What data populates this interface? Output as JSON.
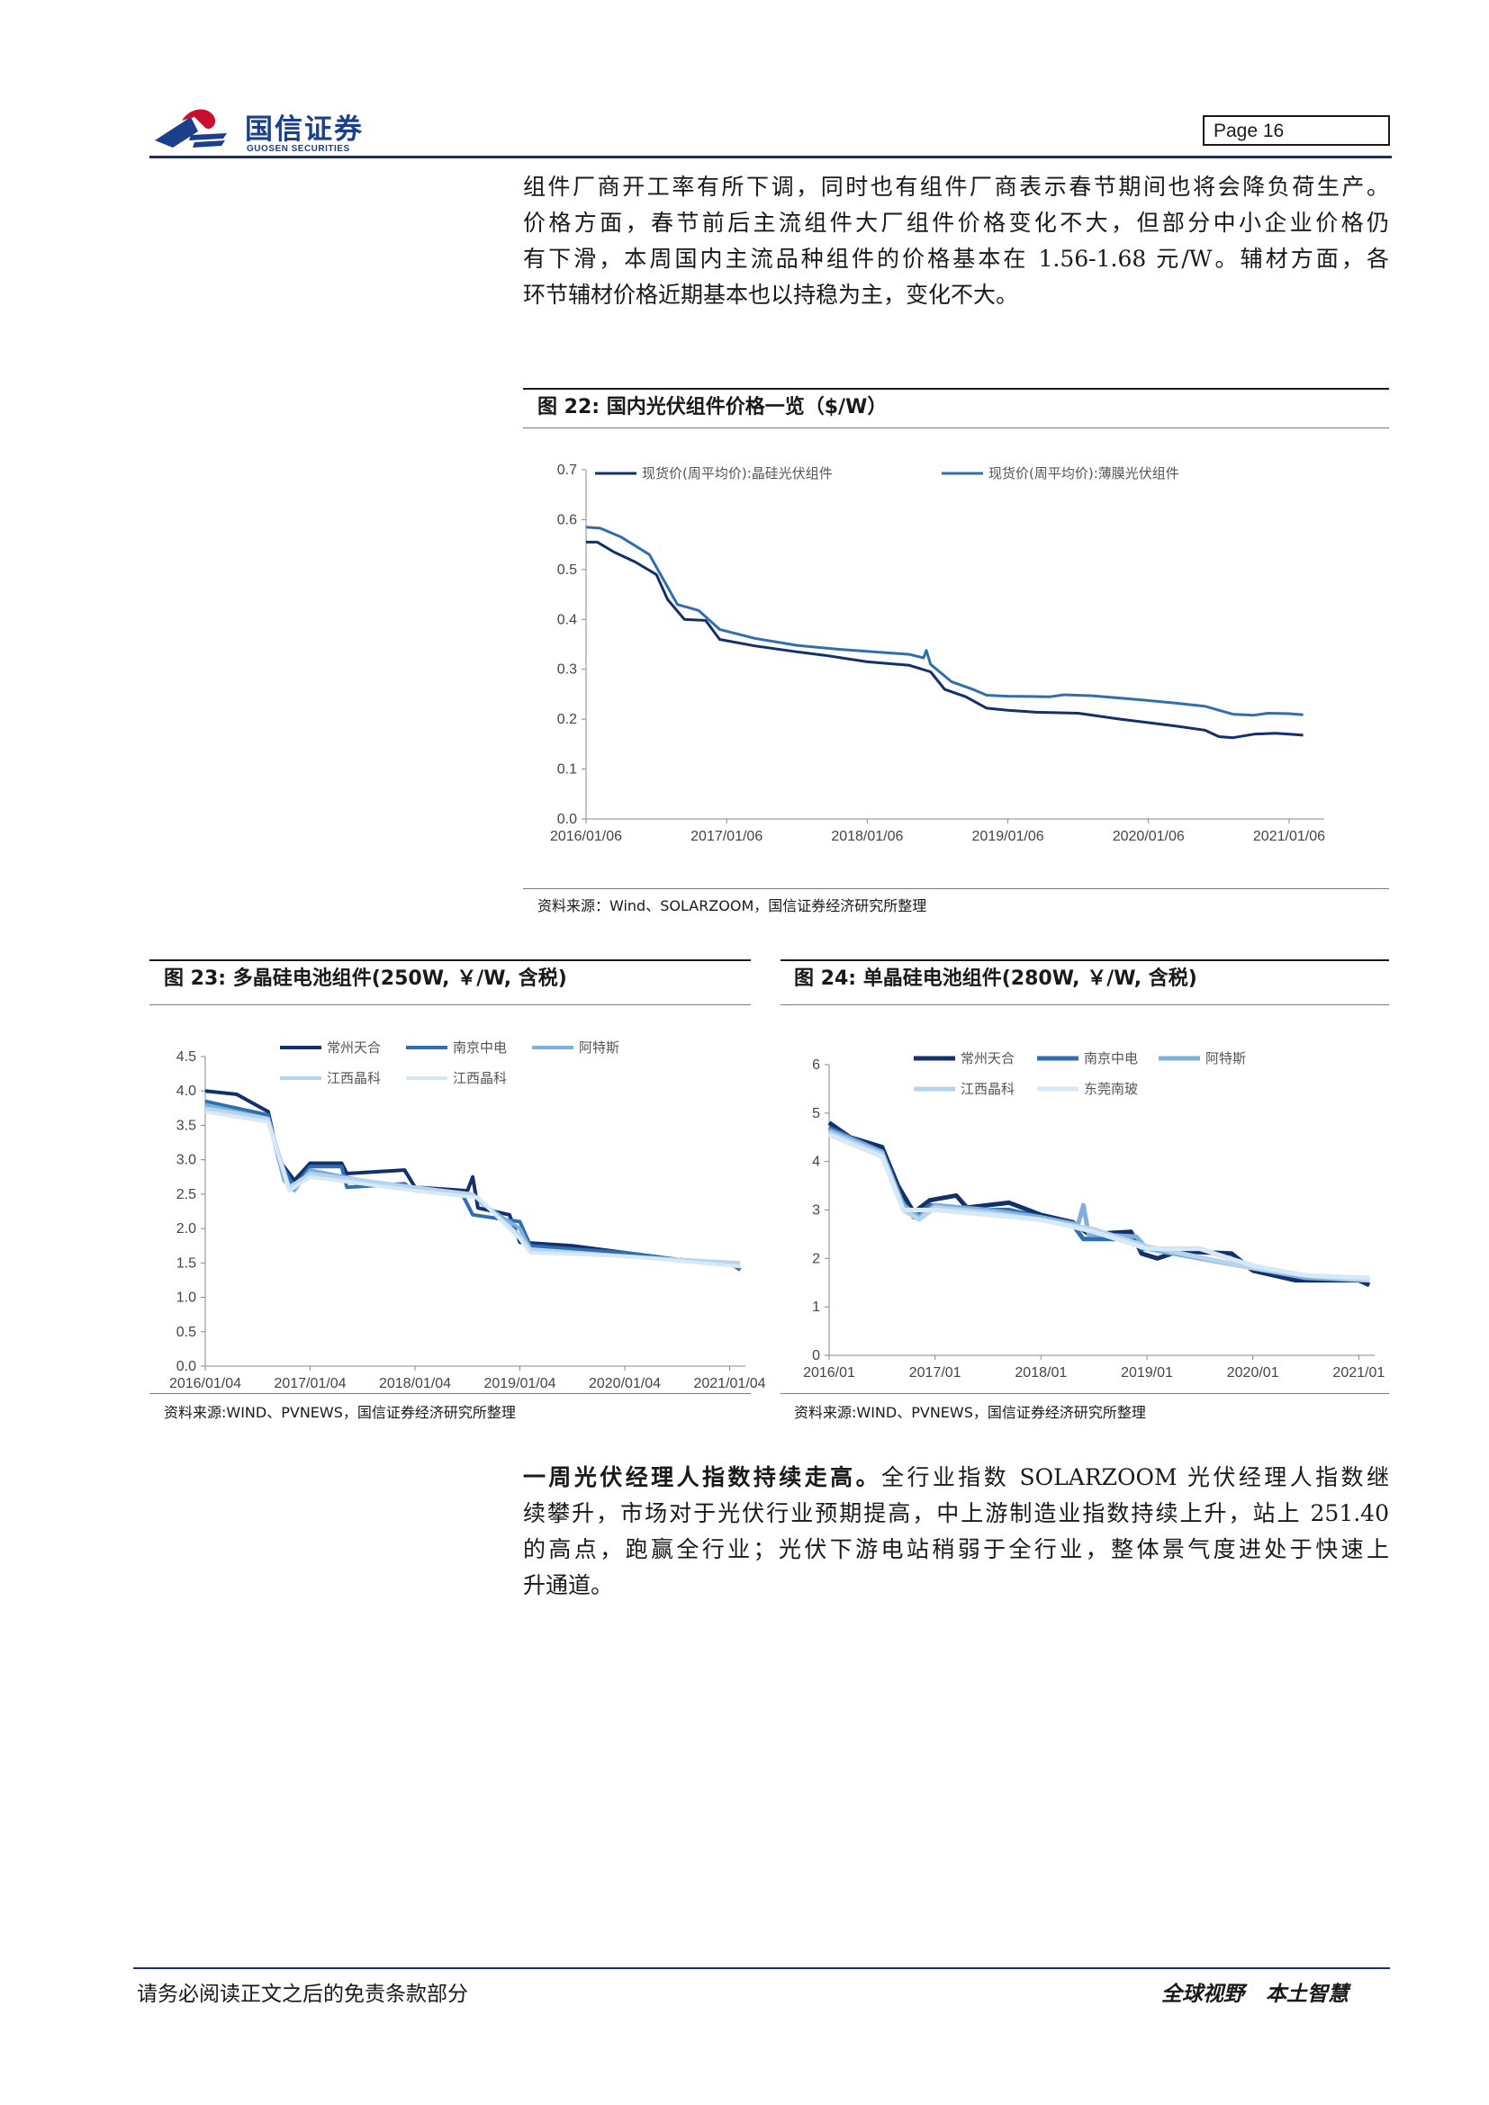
{
  "header": {
    "company_cn": "国信证券",
    "company_en": "GUOSEN SECURITIES",
    "page_label": "Page  16"
  },
  "intro": {
    "lines": [
      "组件厂商开工率有所下调，同时也有组件厂商表示春节期间也将会降负荷生产。",
      "价格方面，春节前后主流组件大厂组件价格变化不大，但部分中小企业价格仍",
      "有下滑，本周国内主流品种组件的价格基本在 1.56-1.68 元/W。辅材方面，各",
      "环节辅材价格近期基本也以持稳为主，变化不大。"
    ]
  },
  "fig22": {
    "title": "图 22:  国内光伏组件价格一览（$/W）",
    "source": "资料来源：Wind、SOLARZOOM，国信证券经济研究所整理"
  },
  "fig23": {
    "title": "图 23:  多晶硅电池组件(250W, ￥/W, 含税)",
    "source": "资料来源:WIND、PVNEWS，国信证券经济研究所整理"
  },
  "fig24": {
    "title": "图 24:  单晶硅电池组件(280W, ￥/W, 含税)",
    "source": "资料来源:WIND、PVNEWS，国信证券经济研究所整理"
  },
  "closing": {
    "lead": "一周光伏经理人指数持续走高。",
    "lines": [
      "全行业指数 SOLARZOOM 光伏经理人指数继",
      "续攀升，市场对于光伏行业预期提高，中上游制造业指数持续上升，站上 251.40",
      "的高点，跑赢全行业；光伏下游电站稍弱于全行业，整体景气度进处于快速上",
      "升通道。"
    ]
  },
  "footer": {
    "left": "请务必阅读正文之后的免责条款部分",
    "right": "全球视野   本土智慧"
  },
  "colors": {
    "navy": "#14306b",
    "mid_blue": "#2f6fb0",
    "light_blue": "#7fb0dc",
    "pale_blue": "#b7d4ee",
    "very_pale": "#d7e8f6"
  },
  "chart_data": [
    {
      "id": "fig22",
      "type": "line",
      "title": "",
      "x_ticks": [
        "2016/01/06",
        "2017/01/06",
        "2018/01/06",
        "2019/01/06",
        "2020/01/06",
        "2021/01/06"
      ],
      "ylim": [
        0,
        0.7
      ],
      "y_ticks": [
        "0.0",
        "0.1",
        "0.2",
        "0.3",
        "0.4",
        "0.5",
        "0.6",
        "0.7"
      ],
      "legend": "top",
      "series": [
        {
          "name": "现货价(周平均价):晶硅光伏组件",
          "color": "#14306b",
          "points": [
            [
              2016.0,
              0.555
            ],
            [
              2016.08,
              0.555
            ],
            [
              2016.2,
              0.535
            ],
            [
              2016.35,
              0.515
            ],
            [
              2016.5,
              0.49
            ],
            [
              2016.58,
              0.44
            ],
            [
              2016.7,
              0.4
            ],
            [
              2016.85,
              0.398
            ],
            [
              2016.95,
              0.36
            ],
            [
              2017.2,
              0.347
            ],
            [
              2017.5,
              0.335
            ],
            [
              2017.7,
              0.328
            ],
            [
              2018.0,
              0.315
            ],
            [
              2018.3,
              0.308
            ],
            [
              2018.45,
              0.295
            ],
            [
              2018.55,
              0.26
            ],
            [
              2018.7,
              0.245
            ],
            [
              2018.85,
              0.222
            ],
            [
              2019.0,
              0.218
            ],
            [
              2019.2,
              0.214
            ],
            [
              2019.5,
              0.212
            ],
            [
              2019.8,
              0.2
            ],
            [
              2020.0,
              0.193
            ],
            [
              2020.2,
              0.186
            ],
            [
              2020.4,
              0.178
            ],
            [
              2020.5,
              0.165
            ],
            [
              2020.6,
              0.163
            ],
            [
              2020.75,
              0.17
            ],
            [
              2020.9,
              0.172
            ],
            [
              2021.0,
              0.17
            ],
            [
              2021.1,
              0.168
            ]
          ]
        },
        {
          "name": "现货价(周平均价):薄膜光伏组件",
          "color": "#2f6fb0",
          "points": [
            [
              2016.0,
              0.585
            ],
            [
              2016.1,
              0.583
            ],
            [
              2016.25,
              0.565
            ],
            [
              2016.45,
              0.53
            ],
            [
              2016.55,
              0.48
            ],
            [
              2016.65,
              0.43
            ],
            [
              2016.8,
              0.418
            ],
            [
              2016.95,
              0.38
            ],
            [
              2017.2,
              0.362
            ],
            [
              2017.5,
              0.348
            ],
            [
              2017.8,
              0.34
            ],
            [
              2018.0,
              0.336
            ],
            [
              2018.3,
              0.33
            ],
            [
              2018.4,
              0.323
            ],
            [
              2018.42,
              0.338
            ],
            [
              2018.45,
              0.31
            ],
            [
              2018.6,
              0.275
            ],
            [
              2018.75,
              0.26
            ],
            [
              2018.85,
              0.248
            ],
            [
              2019.0,
              0.246
            ],
            [
              2019.3,
              0.245
            ],
            [
              2019.4,
              0.249
            ],
            [
              2019.6,
              0.247
            ],
            [
              2019.9,
              0.24
            ],
            [
              2020.2,
              0.232
            ],
            [
              2020.4,
              0.226
            ],
            [
              2020.6,
              0.21
            ],
            [
              2020.75,
              0.208
            ],
            [
              2020.85,
              0.212
            ],
            [
              2021.0,
              0.211
            ],
            [
              2021.1,
              0.209
            ]
          ]
        }
      ]
    },
    {
      "id": "fig23",
      "type": "line",
      "title": "",
      "x_ticks": [
        "2016/01/04",
        "2017/01/04",
        "2018/01/04",
        "2019/01/04",
        "2020/01/04",
        "2021/01/04"
      ],
      "ylim": [
        0,
        4.5
      ],
      "y_ticks": [
        "0.0",
        "0.5",
        "1.0",
        "1.5",
        "2.0",
        "2.5",
        "3.0",
        "3.5",
        "4.0",
        "4.5"
      ],
      "legend": "top",
      "series": [
        {
          "name": "常州天合",
          "color": "#14306b",
          "points": [
            [
              2016.0,
              4.0
            ],
            [
              2016.3,
              3.95
            ],
            [
              2016.6,
              3.7
            ],
            [
              2016.7,
              3.0
            ],
            [
              2016.85,
              2.7
            ],
            [
              2017.0,
              2.95
            ],
            [
              2017.3,
              2.95
            ],
            [
              2017.35,
              2.8
            ],
            [
              2017.9,
              2.85
            ],
            [
              2018.0,
              2.6
            ],
            [
              2018.5,
              2.55
            ],
            [
              2018.55,
              2.75
            ],
            [
              2018.6,
              2.3
            ],
            [
              2018.9,
              2.2
            ],
            [
              2019.0,
              1.8
            ],
            [
              2019.5,
              1.75
            ],
            [
              2020.0,
              1.65
            ],
            [
              2020.5,
              1.55
            ],
            [
              2021.0,
              1.5
            ],
            [
              2021.1,
              1.4
            ]
          ]
        },
        {
          "name": "南京中电",
          "color": "#2f6fb0",
          "points": [
            [
              2016.0,
              3.85
            ],
            [
              2016.6,
              3.65
            ],
            [
              2016.7,
              3.0
            ],
            [
              2016.85,
              2.6
            ],
            [
              2017.0,
              2.9
            ],
            [
              2017.3,
              2.9
            ],
            [
              2017.35,
              2.6
            ],
            [
              2017.9,
              2.65
            ],
            [
              2018.0,
              2.55
            ],
            [
              2018.45,
              2.5
            ],
            [
              2018.55,
              2.2
            ],
            [
              2019.0,
              2.1
            ],
            [
              2019.1,
              1.75
            ],
            [
              2019.5,
              1.7
            ],
            [
              2020.0,
              1.65
            ],
            [
              2020.5,
              1.55
            ],
            [
              2021.0,
              1.5
            ],
            [
              2021.1,
              1.4
            ]
          ]
        },
        {
          "name": "阿特斯",
          "color": "#7fb0dc",
          "points": [
            [
              2016.0,
              3.8
            ],
            [
              2016.6,
              3.6
            ],
            [
              2016.75,
              2.7
            ],
            [
              2016.85,
              2.55
            ],
            [
              2017.0,
              2.85
            ],
            [
              2017.5,
              2.7
            ],
            [
              2018.0,
              2.6
            ],
            [
              2018.55,
              2.5
            ],
            [
              2018.65,
              2.35
            ],
            [
              2019.0,
              2.0
            ],
            [
              2019.1,
              1.7
            ],
            [
              2020.0,
              1.6
            ],
            [
              2020.5,
              1.55
            ],
            [
              2021.1,
              1.45
            ]
          ]
        },
        {
          "name": "江西晶科",
          "color": "#b7d4ee",
          "points": [
            [
              2016.0,
              3.75
            ],
            [
              2016.6,
              3.6
            ],
            [
              2016.8,
              2.6
            ],
            [
              2017.0,
              2.8
            ],
            [
              2017.5,
              2.7
            ],
            [
              2018.0,
              2.6
            ],
            [
              2018.55,
              2.5
            ],
            [
              2018.7,
              2.3
            ],
            [
              2019.0,
              1.9
            ],
            [
              2019.1,
              1.7
            ],
            [
              2020.0,
              1.6
            ],
            [
              2020.5,
              1.55
            ],
            [
              2021.1,
              1.5
            ]
          ]
        },
        {
          "name": "江西晶科",
          "color": "#d7e8f6",
          "points": [
            [
              2016.0,
              3.7
            ],
            [
              2016.6,
              3.55
            ],
            [
              2016.8,
              2.55
            ],
            [
              2017.0,
              2.75
            ],
            [
              2017.5,
              2.65
            ],
            [
              2018.0,
              2.55
            ],
            [
              2018.6,
              2.45
            ],
            [
              2019.0,
              1.85
            ],
            [
              2019.1,
              1.65
            ],
            [
              2020.0,
              1.6
            ],
            [
              2021.1,
              1.45
            ]
          ]
        }
      ]
    },
    {
      "id": "fig24",
      "type": "line",
      "title": "",
      "x_ticks": [
        "2016/01",
        "2017/01",
        "2018/01",
        "2019/01",
        "2020/01",
        "2021/01"
      ],
      "ylim": [
        0,
        6
      ],
      "y_ticks": [
        "0",
        "1",
        "2",
        "3",
        "4",
        "5",
        "6"
      ],
      "legend": "top",
      "series": [
        {
          "name": "常州天合",
          "color": "#14306b",
          "points": [
            [
              2016.0,
              4.8
            ],
            [
              2016.2,
              4.5
            ],
            [
              2016.5,
              4.3
            ],
            [
              2016.65,
              3.5
            ],
            [
              2016.8,
              2.95
            ],
            [
              2016.95,
              3.2
            ],
            [
              2017.2,
              3.3
            ],
            [
              2017.3,
              3.05
            ],
            [
              2017.7,
              3.15
            ],
            [
              2018.0,
              2.9
            ],
            [
              2018.3,
              2.75
            ],
            [
              2018.45,
              2.5
            ],
            [
              2018.85,
              2.55
            ],
            [
              2018.95,
              2.1
            ],
            [
              2019.1,
              2.0
            ],
            [
              2019.3,
              2.15
            ],
            [
              2019.8,
              2.1
            ],
            [
              2020.0,
              1.75
            ],
            [
              2020.4,
              1.55
            ],
            [
              2021.0,
              1.55
            ],
            [
              2021.1,
              1.45
            ]
          ]
        },
        {
          "name": "南京中电",
          "color": "#2f6fb0",
          "points": [
            [
              2016.0,
              4.7
            ],
            [
              2016.2,
              4.5
            ],
            [
              2016.5,
              4.2
            ],
            [
              2016.65,
              3.3
            ],
            [
              2016.8,
              2.85
            ],
            [
              2016.95,
              3.1
            ],
            [
              2017.3,
              3.0
            ],
            [
              2017.7,
              3.0
            ],
            [
              2018.0,
              2.85
            ],
            [
              2018.3,
              2.7
            ],
            [
              2018.4,
              2.4
            ],
            [
              2018.85,
              2.4
            ],
            [
              2018.95,
              2.2
            ],
            [
              2019.5,
              2.2
            ],
            [
              2020.0,
              1.85
            ],
            [
              2020.4,
              1.65
            ],
            [
              2021.0,
              1.6
            ],
            [
              2021.1,
              1.55
            ]
          ]
        },
        {
          "name": "阿特斯",
          "color": "#7fb0dc",
          "points": [
            [
              2016.0,
              4.65
            ],
            [
              2016.5,
              4.2
            ],
            [
              2016.7,
              3.1
            ],
            [
              2016.85,
              2.85
            ],
            [
              2017.0,
              3.1
            ],
            [
              2017.5,
              3.0
            ],
            [
              2018.0,
              2.85
            ],
            [
              2018.35,
              2.7
            ],
            [
              2018.4,
              3.1
            ],
            [
              2018.45,
              2.5
            ],
            [
              2018.9,
              2.45
            ],
            [
              2019.0,
              2.2
            ],
            [
              2020.0,
              1.8
            ],
            [
              2020.5,
              1.6
            ],
            [
              2021.1,
              1.55
            ]
          ]
        },
        {
          "name": "江西晶科",
          "color": "#b7d4ee",
          "points": [
            [
              2016.0,
              4.6
            ],
            [
              2016.5,
              4.15
            ],
            [
              2016.7,
              3.0
            ],
            [
              2016.85,
              2.8
            ],
            [
              2017.0,
              3.05
            ],
            [
              2017.5,
              2.95
            ],
            [
              2018.0,
              2.8
            ],
            [
              2018.5,
              2.6
            ],
            [
              2019.0,
              2.25
            ],
            [
              2020.0,
              1.8
            ],
            [
              2020.5,
              1.65
            ],
            [
              2021.1,
              1.55
            ]
          ]
        },
        {
          "name": "东莞南玻",
          "color": "#d7e8f6",
          "points": [
            [
              2016.0,
              4.55
            ],
            [
              2016.5,
              4.1
            ],
            [
              2016.7,
              3.0
            ],
            [
              2017.0,
              3.0
            ],
            [
              2017.5,
              2.9
            ],
            [
              2018.0,
              2.8
            ],
            [
              2018.5,
              2.55
            ],
            [
              2019.0,
              2.2
            ],
            [
              2019.5,
              2.2
            ],
            [
              2020.0,
              1.85
            ],
            [
              2020.5,
              1.65
            ],
            [
              2021.1,
              1.6
            ]
          ]
        }
      ]
    }
  ]
}
